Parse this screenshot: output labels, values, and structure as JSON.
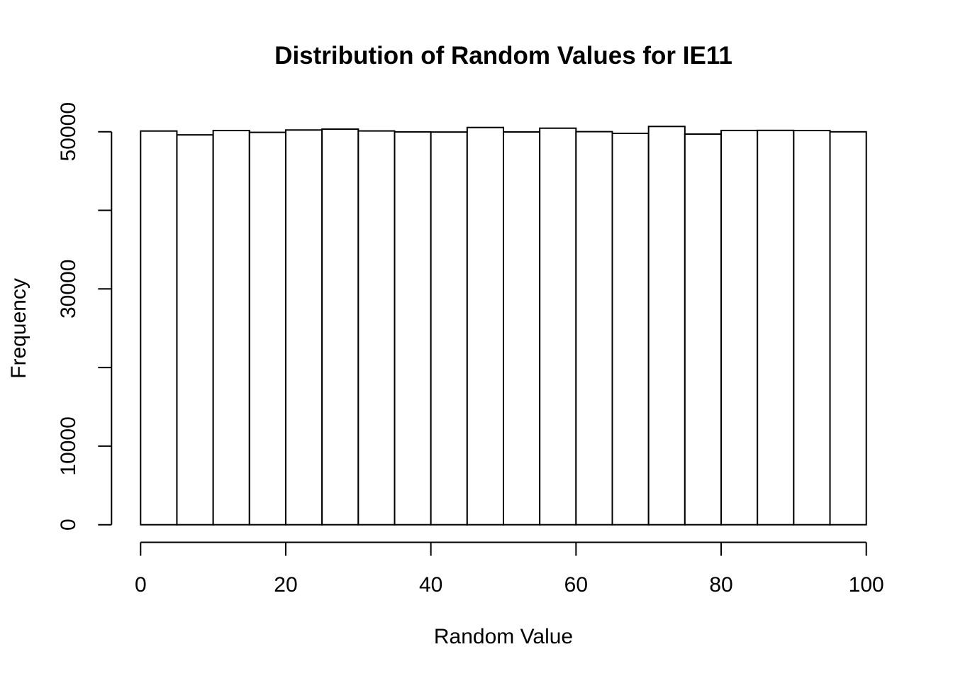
{
  "chart_data": {
    "type": "bar",
    "subtype": "histogram",
    "title": "Distribution of Random Values for IE11",
    "xlabel": "Random Value",
    "ylabel": "Frequency",
    "bins": {
      "start": 0,
      "end": 100,
      "bin_width": 5
    },
    "categories": [
      "0-5",
      "5-10",
      "10-15",
      "15-20",
      "20-25",
      "25-30",
      "30-35",
      "35-40",
      "40-45",
      "45-50",
      "50-55",
      "55-60",
      "60-65",
      "65-70",
      "70-75",
      "75-80",
      "80-85",
      "85-90",
      "90-95",
      "95-100"
    ],
    "values": [
      50090,
      49600,
      50150,
      49920,
      50220,
      50330,
      50100,
      49980,
      49960,
      50540,
      49970,
      50450,
      50010,
      49790,
      50670,
      49700,
      50160,
      50170,
      50150,
      49990
    ],
    "xlim": [
      0,
      100
    ],
    "ylim": [
      0,
      50700
    ],
    "x_ticks": [
      0,
      20,
      40,
      60,
      80,
      100
    ],
    "x_tick_labels": [
      "0",
      "20",
      "40",
      "60",
      "80",
      "100"
    ],
    "y_ticks": [
      0,
      10000,
      20000,
      30000,
      40000,
      50000
    ],
    "y_tick_labels": [
      "0",
      "10000",
      "",
      "30000",
      "",
      "50000"
    ],
    "grid": false,
    "legend": false,
    "colors": {
      "background": "#ffffff",
      "bar_fill": "#ffffff",
      "bar_stroke": "#000000",
      "axis": "#000000",
      "text": "#000000"
    }
  }
}
